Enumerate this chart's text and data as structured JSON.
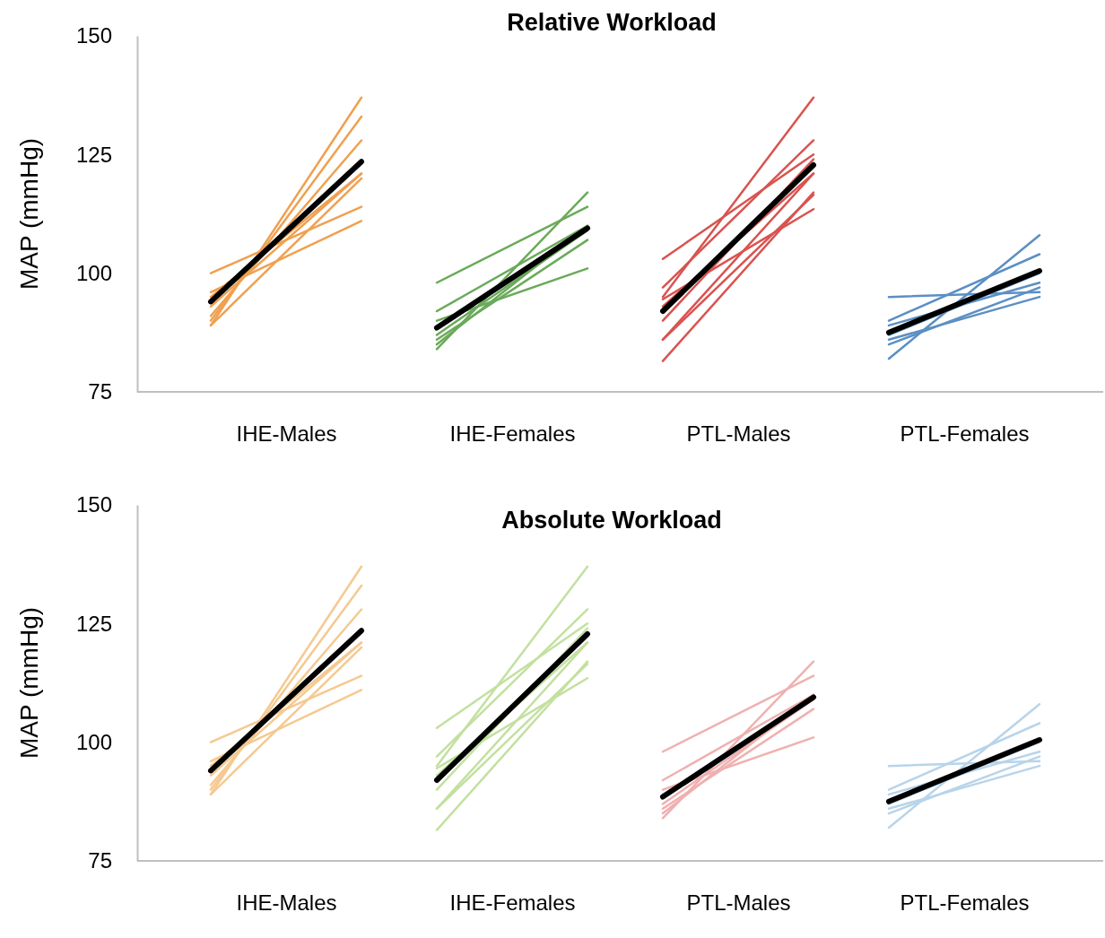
{
  "chart_data": [
    {
      "type": "line",
      "title": "Relative Workload",
      "ylabel": "MAP (mmHg)",
      "ylim": [
        75,
        150
      ],
      "yticks": [
        75,
        100,
        125,
        150
      ],
      "categories": [
        null,
        "IHE-Males",
        null,
        null,
        "IHE-Females",
        null,
        null,
        "PTL-Males",
        null,
        null,
        "PTL-Females",
        null
      ],
      "line_style": "solid",
      "series": [
        {
          "color": "#f0a050",
          "values": [
            100,
            null,
            114,
            null,
            null,
            null,
            null,
            null,
            null,
            null,
            null,
            null
          ]
        },
        {
          "color": "#f0a050",
          "values": [
            96,
            null,
            111,
            null,
            null,
            null,
            null,
            null,
            null,
            null,
            null,
            null
          ]
        },
        {
          "color": "#f0a050",
          "values": [
            89,
            null,
            137,
            null,
            null,
            null,
            null,
            null,
            null,
            null,
            null,
            null
          ]
        },
        {
          "color": "#f0a050",
          "values": [
            90,
            null,
            133,
            null,
            null,
            null,
            null,
            null,
            null,
            null,
            null,
            null
          ]
        },
        {
          "color": "#f0a050",
          "values": [
            91,
            null,
            128,
            null,
            null,
            null,
            null,
            null,
            null,
            null,
            null,
            null
          ]
        },
        {
          "color": "#f0a050",
          "values": [
            93,
            null,
            121,
            null,
            null,
            null,
            null,
            null,
            null,
            null,
            null,
            null
          ]
        },
        {
          "color": "#f0a050",
          "values": [
            95,
            null,
            121,
            null,
            null,
            null,
            null,
            null,
            null,
            null,
            null,
            null
          ]
        },
        {
          "color": "#f0a050",
          "values": [
            89,
            null,
            120,
            null,
            null,
            null,
            null,
            null,
            null,
            null,
            null,
            null
          ]
        },
        {
          "color": "#000000",
          "values": [
            94,
            null,
            123.5,
            null,
            null,
            null,
            null,
            null,
            null,
            null,
            null,
            null
          ]
        },
        {
          "color": "#6aaa5a",
          "values": [
            null,
            null,
            null,
            98,
            null,
            114,
            null,
            null,
            null,
            null,
            null,
            null
          ]
        },
        {
          "color": "#6aaa5a",
          "values": [
            null,
            null,
            null,
            92,
            null,
            110,
            null,
            null,
            null,
            null,
            null,
            null
          ]
        },
        {
          "color": "#6aaa5a",
          "values": [
            null,
            null,
            null,
            90,
            null,
            101,
            null,
            null,
            null,
            null,
            null,
            null
          ]
        },
        {
          "color": "#6aaa5a",
          "values": [
            null,
            null,
            null,
            84,
            null,
            117,
            null,
            null,
            null,
            null,
            null,
            null
          ]
        },
        {
          "color": "#6aaa5a",
          "values": [
            null,
            null,
            null,
            87,
            null,
            109,
            null,
            null,
            null,
            null,
            null,
            null
          ]
        },
        {
          "color": "#6aaa5a",
          "values": [
            null,
            null,
            null,
            86,
            null,
            107,
            null,
            null,
            null,
            null,
            null,
            null
          ]
        },
        {
          "color": "#6aaa5a",
          "values": [
            null,
            null,
            null,
            85,
            null,
            110,
            null,
            null,
            null,
            null,
            null,
            null
          ]
        },
        {
          "color": "#000000",
          "values": [
            null,
            null,
            null,
            88.5,
            null,
            109.5,
            null,
            null,
            null,
            null,
            null,
            null
          ]
        },
        {
          "color": "#d9534f",
          "values": [
            null,
            null,
            null,
            null,
            null,
            null,
            81.5,
            null,
            117,
            null,
            null,
            null
          ]
        },
        {
          "color": "#d9534f",
          "values": [
            null,
            null,
            null,
            null,
            null,
            null,
            86,
            null,
            121,
            null,
            null,
            null
          ]
        },
        {
          "color": "#d9534f",
          "values": [
            null,
            null,
            null,
            null,
            null,
            null,
            86,
            null,
            116.5,
            null,
            null,
            null
          ]
        },
        {
          "color": "#d9534f",
          "values": [
            null,
            null,
            null,
            null,
            null,
            null,
            103,
            null,
            125,
            null,
            null,
            null
          ]
        },
        {
          "color": "#d9534f",
          "values": [
            null,
            null,
            null,
            null,
            null,
            null,
            95,
            null,
            137,
            null,
            null,
            null
          ]
        },
        {
          "color": "#d9534f",
          "values": [
            null,
            null,
            null,
            null,
            null,
            null,
            97,
            null,
            128,
            null,
            null,
            null
          ]
        },
        {
          "color": "#d9534f",
          "values": [
            null,
            null,
            null,
            null,
            null,
            null,
            94.5,
            null,
            113.5,
            null,
            null,
            null
          ]
        },
        {
          "color": "#d9534f",
          "values": [
            null,
            null,
            null,
            null,
            null,
            null,
            90,
            null,
            124,
            null,
            null,
            null
          ]
        },
        {
          "color": "#d9534f",
          "values": [
            null,
            null,
            null,
            null,
            null,
            null,
            93,
            null,
            121,
            null,
            null,
            null
          ]
        },
        {
          "color": "#000000",
          "values": [
            null,
            null,
            null,
            null,
            null,
            null,
            92,
            null,
            122.8,
            null,
            null,
            null
          ]
        },
        {
          "color": "#5b8fc4",
          "values": [
            null,
            null,
            null,
            null,
            null,
            null,
            null,
            null,
            null,
            95,
            null,
            96
          ]
        },
        {
          "color": "#5b8fc4",
          "values": [
            null,
            null,
            null,
            null,
            null,
            null,
            null,
            null,
            null,
            82,
            null,
            108
          ]
        },
        {
          "color": "#5b8fc4",
          "values": [
            null,
            null,
            null,
            null,
            null,
            null,
            null,
            null,
            null,
            90,
            null,
            104
          ]
        },
        {
          "color": "#5b8fc4",
          "values": [
            null,
            null,
            null,
            null,
            null,
            null,
            null,
            null,
            null,
            89,
            null,
            98
          ]
        },
        {
          "color": "#5b8fc4",
          "values": [
            null,
            null,
            null,
            null,
            null,
            null,
            null,
            null,
            null,
            86,
            null,
            95
          ]
        },
        {
          "color": "#5b8fc4",
          "values": [
            null,
            null,
            null,
            null,
            null,
            null,
            null,
            null,
            null,
            85,
            null,
            97
          ]
        },
        {
          "color": "#5b8fc4",
          "values": [
            null,
            null,
            null,
            null,
            null,
            null,
            null,
            null,
            null,
            87,
            null,
            100
          ]
        },
        {
          "color": "#000000",
          "values": [
            null,
            null,
            null,
            null,
            null,
            null,
            null,
            null,
            null,
            87.5,
            null,
            100.5
          ]
        }
      ]
    },
    {
      "type": "line",
      "title": "Absolute Workload",
      "ylabel": "MAP (mmHg)",
      "ylim": [
        75,
        150
      ],
      "yticks": [
        75,
        100,
        125,
        150
      ],
      "categories": [
        null,
        "IHE-Males",
        null,
        null,
        "IHE-Females",
        null,
        null,
        "PTL-Males",
        null,
        null,
        "PTL-Females",
        null
      ],
      "line_style": "solid",
      "series": [
        {
          "color": "#f5c990",
          "values": [
            100,
            null,
            114,
            null,
            null,
            null,
            null,
            null,
            null,
            null,
            null,
            null
          ]
        },
        {
          "color": "#f5c990",
          "values": [
            96,
            null,
            111,
            null,
            null,
            null,
            null,
            null,
            null,
            null,
            null,
            null
          ]
        },
        {
          "color": "#f5c990",
          "values": [
            89,
            null,
            137,
            null,
            null,
            null,
            null,
            null,
            null,
            null,
            null,
            null
          ]
        },
        {
          "color": "#f5c990",
          "values": [
            90,
            null,
            133,
            null,
            null,
            null,
            null,
            null,
            null,
            null,
            null,
            null
          ]
        },
        {
          "color": "#f5c990",
          "values": [
            91,
            null,
            128,
            null,
            null,
            null,
            null,
            null,
            null,
            null,
            null,
            null
          ]
        },
        {
          "color": "#f5c990",
          "values": [
            93,
            null,
            121,
            null,
            null,
            null,
            null,
            null,
            null,
            null,
            null,
            null
          ]
        },
        {
          "color": "#f5c990",
          "values": [
            95,
            null,
            121,
            null,
            null,
            null,
            null,
            null,
            null,
            null,
            null,
            null
          ]
        },
        {
          "color": "#f5c990",
          "values": [
            89,
            null,
            120,
            null,
            null,
            null,
            null,
            null,
            null,
            null,
            null,
            null
          ]
        },
        {
          "color": "#000000",
          "values": [
            94,
            null,
            123.5,
            null,
            null,
            null,
            null,
            null,
            null,
            null,
            null,
            null
          ]
        },
        {
          "color": "#c3e0a0",
          "values": [
            null,
            null,
            null,
            81.5,
            null,
            117,
            null,
            null,
            null,
            null,
            null,
            null
          ]
        },
        {
          "color": "#c3e0a0",
          "values": [
            null,
            null,
            null,
            86,
            null,
            121,
            null,
            null,
            null,
            null,
            null,
            null
          ]
        },
        {
          "color": "#c3e0a0",
          "values": [
            null,
            null,
            null,
            86,
            null,
            116.5,
            null,
            null,
            null,
            null,
            null,
            null
          ]
        },
        {
          "color": "#c3e0a0",
          "values": [
            null,
            null,
            null,
            103,
            null,
            125,
            null,
            null,
            null,
            null,
            null,
            null
          ]
        },
        {
          "color": "#c3e0a0",
          "values": [
            null,
            null,
            null,
            95,
            null,
            137,
            null,
            null,
            null,
            null,
            null,
            null
          ]
        },
        {
          "color": "#c3e0a0",
          "values": [
            null,
            null,
            null,
            97,
            null,
            128,
            null,
            null,
            null,
            null,
            null,
            null
          ]
        },
        {
          "color": "#c3e0a0",
          "values": [
            null,
            null,
            null,
            94.5,
            null,
            113.5,
            null,
            null,
            null,
            null,
            null,
            null
          ]
        },
        {
          "color": "#c3e0a0",
          "values": [
            null,
            null,
            null,
            90,
            null,
            124,
            null,
            null,
            null,
            null,
            null,
            null
          ]
        },
        {
          "color": "#c3e0a0",
          "values": [
            null,
            null,
            null,
            93,
            null,
            121,
            null,
            null,
            null,
            null,
            null,
            null
          ]
        },
        {
          "color": "#000000",
          "values": [
            null,
            null,
            null,
            92,
            null,
            122.8,
            null,
            null,
            null,
            null,
            null,
            null
          ]
        },
        {
          "color": "#f0b0b0",
          "values": [
            null,
            null,
            null,
            null,
            null,
            null,
            98,
            null,
            114,
            null,
            null,
            null
          ]
        },
        {
          "color": "#f0b0b0",
          "values": [
            null,
            null,
            null,
            null,
            null,
            null,
            92,
            null,
            110,
            null,
            null,
            null
          ]
        },
        {
          "color": "#f0b0b0",
          "values": [
            null,
            null,
            null,
            null,
            null,
            null,
            90,
            null,
            101,
            null,
            null,
            null
          ]
        },
        {
          "color": "#f0b0b0",
          "values": [
            null,
            null,
            null,
            null,
            null,
            null,
            84,
            null,
            117,
            null,
            null,
            null
          ]
        },
        {
          "color": "#f0b0b0",
          "values": [
            null,
            null,
            null,
            null,
            null,
            null,
            87,
            null,
            109,
            null,
            null,
            null
          ]
        },
        {
          "color": "#f0b0b0",
          "values": [
            null,
            null,
            null,
            null,
            null,
            null,
            86,
            null,
            107,
            null,
            null,
            null
          ]
        },
        {
          "color": "#f0b0b0",
          "values": [
            null,
            null,
            null,
            null,
            null,
            null,
            85,
            null,
            110,
            null,
            null,
            null
          ]
        },
        {
          "color": "#000000",
          "values": [
            null,
            null,
            null,
            null,
            null,
            null,
            88.5,
            null,
            109.5,
            null,
            null,
            null
          ]
        },
        {
          "color": "#b8d4ea",
          "values": [
            null,
            null,
            null,
            null,
            null,
            null,
            null,
            null,
            null,
            95,
            null,
            96
          ]
        },
        {
          "color": "#b8d4ea",
          "values": [
            null,
            null,
            null,
            null,
            null,
            null,
            null,
            null,
            null,
            82,
            null,
            108
          ]
        },
        {
          "color": "#b8d4ea",
          "values": [
            null,
            null,
            null,
            null,
            null,
            null,
            null,
            null,
            null,
            90,
            null,
            104
          ]
        },
        {
          "color": "#b8d4ea",
          "values": [
            null,
            null,
            null,
            null,
            null,
            null,
            null,
            null,
            null,
            89,
            null,
            98
          ]
        },
        {
          "color": "#b8d4ea",
          "values": [
            null,
            null,
            null,
            null,
            null,
            null,
            null,
            null,
            null,
            86,
            null,
            95
          ]
        },
        {
          "color": "#b8d4ea",
          "values": [
            null,
            null,
            null,
            null,
            null,
            null,
            null,
            null,
            null,
            85,
            null,
            97
          ]
        },
        {
          "color": "#b8d4ea",
          "values": [
            null,
            null,
            null,
            null,
            null,
            null,
            null,
            null,
            null,
            87,
            null,
            100
          ]
        },
        {
          "color": "#000000",
          "values": [
            null,
            null,
            null,
            null,
            null,
            null,
            null,
            null,
            null,
            87.5,
            null,
            100.5
          ]
        }
      ]
    }
  ]
}
